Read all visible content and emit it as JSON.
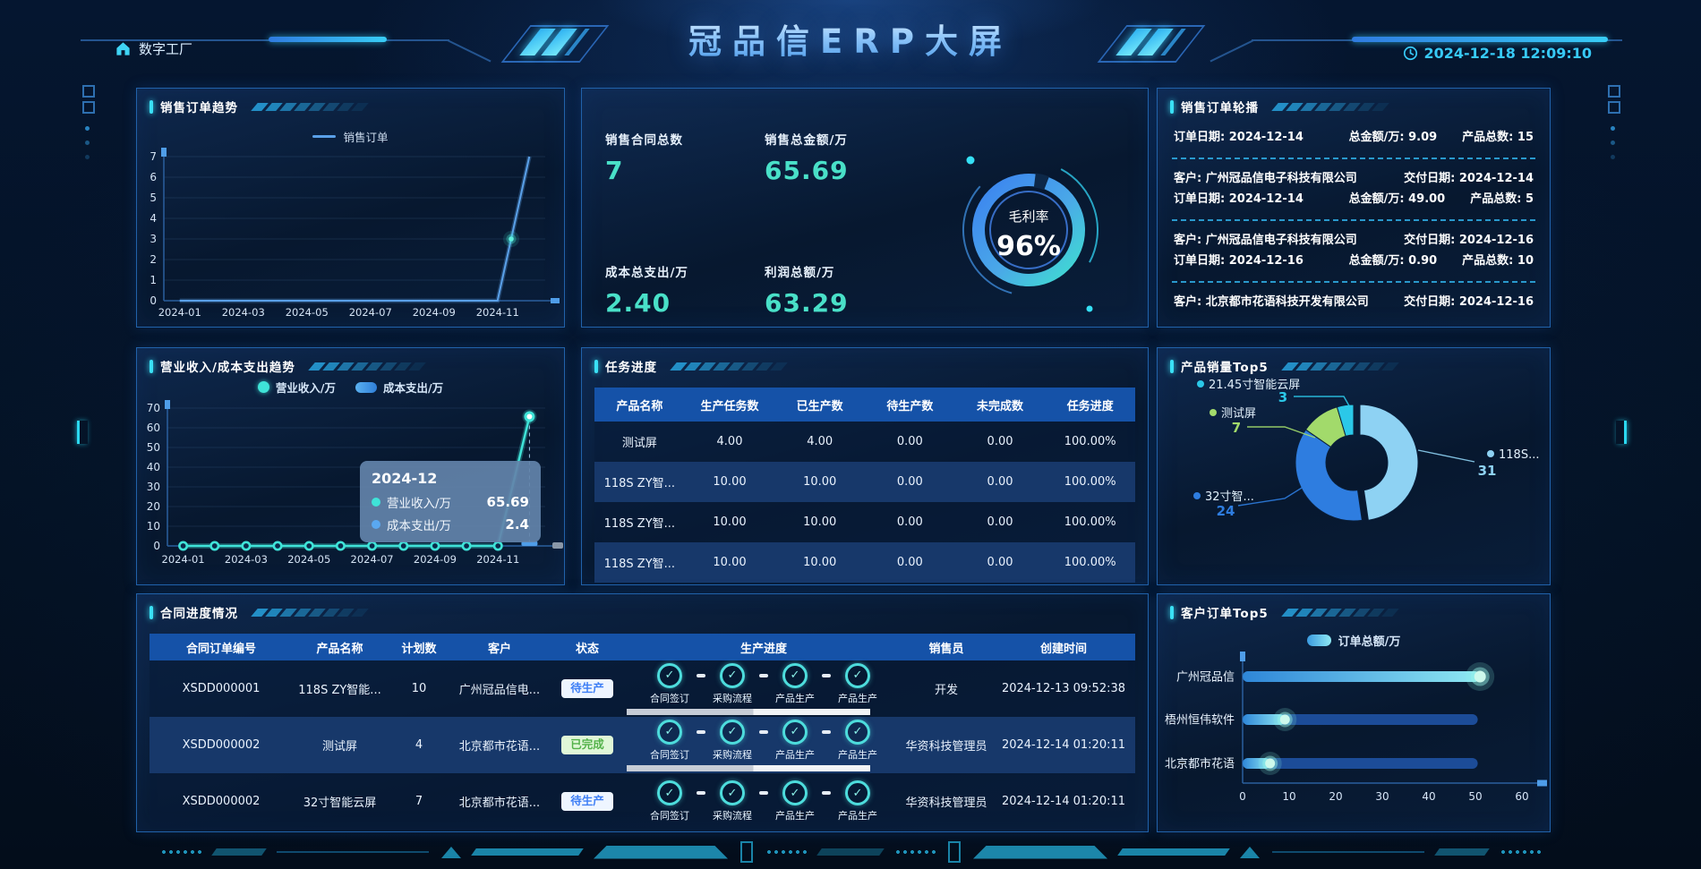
{
  "header": {
    "home_label": "数字工厂",
    "title": "冠品信ERP大屏",
    "timestamp": "2024-12-18 12:09:10"
  },
  "panels": {
    "sales_trend_title": "销售订单趋势",
    "order_carousel_title": "销售订单轮播",
    "income_cost_title": "营业收入/成本支出趋势",
    "task_progress_title": "任务进度",
    "product_top5_title": "产品销量Top5",
    "contract_title": "合同进度情况",
    "customer_top5_title": "客户订单Top5"
  },
  "kpis": {
    "items": [
      {
        "label": "销售合同总数",
        "value": "7"
      },
      {
        "label": "销售总金额/万",
        "value": "65.69"
      },
      {
        "label": "成本总支出/万",
        "value": "2.40"
      },
      {
        "label": "利润总额/万",
        "value": "63.29"
      }
    ],
    "gauge_label": "毛利率",
    "gauge_display": "96%",
    "gauge_percent": 96
  },
  "order_carousel": {
    "labels": {
      "customer": "客户:",
      "delivery": "交付日期:",
      "order": "订单日期:",
      "amount": "总金额/万:",
      "count": "产品总数:"
    },
    "items": [
      {
        "order_date": "2024-12-14",
        "amount": "9.09",
        "count": "15"
      },
      {
        "customer": "广州冠品信电子科技有限公司",
        "delivery_date": "2024-12-14",
        "order_date": "2024-12-14",
        "amount": "49.00",
        "count": "5"
      },
      {
        "customer": "广州冠品信电子科技有限公司",
        "delivery_date": "2024-12-16",
        "order_date": "2024-12-16",
        "amount": "0.90",
        "count": "10"
      },
      {
        "customer": "北京都市花语科技开发有限公司",
        "delivery_date": "2024-12-16"
      }
    ]
  },
  "task_progress": {
    "headers": [
      "产品名称",
      "生产任务数",
      "已生产数",
      "待生产数",
      "未完成数",
      "任务进度"
    ],
    "rows": [
      [
        "测试屏",
        "4.00",
        "4.00",
        "0.00",
        "0.00",
        "100.00%"
      ],
      [
        "118S ZY智...",
        "10.00",
        "10.00",
        "0.00",
        "0.00",
        "100.00%"
      ],
      [
        "118S ZY智...",
        "10.00",
        "10.00",
        "0.00",
        "0.00",
        "100.00%"
      ],
      [
        "118S ZY智...",
        "10.00",
        "10.00",
        "0.00",
        "0.00",
        "100.00%"
      ]
    ]
  },
  "contract_progress": {
    "headers": [
      "合同订单编号",
      "产品名称",
      "计划数",
      "客户",
      "状态",
      "生产进度",
      "销售员",
      "创建时间"
    ],
    "steps": [
      "合同签订",
      "采购流程",
      "产品生产",
      "产品生产"
    ],
    "rows": [
      {
        "order_no": "XSDD000001",
        "product": "118S ZY智能...",
        "plan": "10",
        "customer": "广州冠品信电...",
        "status": "待生产",
        "status_type": "pending",
        "salesperson": "开发",
        "created": "2024-12-13 09:52:38",
        "progress_bar": true
      },
      {
        "order_no": "XSDD000002",
        "product": "测试屏",
        "plan": "4",
        "customer": "北京都市花语...",
        "status": "已完成",
        "status_type": "done",
        "salesperson": "华资科技管理员",
        "created": "2024-12-14 01:20:11",
        "progress_bar": true
      },
      {
        "order_no": "XSDD000002",
        "product": "32寸智能云屏",
        "plan": "7",
        "customer": "北京都市花语...",
        "status": "待生产",
        "status_type": "pending",
        "salesperson": "华资科技管理员",
        "created": "2024-12-14 01:20:11",
        "progress_bar": false
      }
    ]
  },
  "chart_data": [
    {
      "id": "sales_trend",
      "type": "line",
      "title": "销售订单趋势",
      "x": [
        "2024-01",
        "2024-02",
        "2024-03",
        "2024-04",
        "2024-05",
        "2024-06",
        "2024-07",
        "2024-08",
        "2024-09",
        "2024-10",
        "2024-11",
        "2024-12"
      ],
      "series": [
        {
          "name": "销售订单",
          "values": [
            0,
            0,
            0,
            0,
            0,
            0,
            0,
            0,
            0,
            0,
            0,
            7
          ],
          "color": "#5aa0e8"
        }
      ],
      "ylim": [
        0,
        7
      ],
      "y_ticks": [
        0,
        1,
        2,
        3,
        4,
        5,
        6,
        7
      ],
      "x_tick_every": 2,
      "grid": true,
      "legend_position": "top"
    },
    {
      "id": "income_cost_trend",
      "type": "line+bar",
      "title": "营业收入/成本支出趋势",
      "x": [
        "2024-01",
        "2024-02",
        "2024-03",
        "2024-04",
        "2024-05",
        "2024-06",
        "2024-07",
        "2024-08",
        "2024-09",
        "2024-10",
        "2024-11",
        "2024-12"
      ],
      "series": [
        {
          "name": "营业收入/万",
          "type": "line",
          "values": [
            0,
            0,
            0,
            0,
            0,
            0,
            0,
            0,
            0,
            0,
            0,
            65.69
          ],
          "color": "#3fe3d8"
        },
        {
          "name": "成本支出/万",
          "type": "bar",
          "values": [
            0,
            0,
            0,
            0,
            0,
            0,
            0,
            0,
            0,
            0,
            0,
            2.4
          ],
          "color": "#4f9de8"
        }
      ],
      "ylim": [
        0,
        70
      ],
      "y_ticks": [
        0,
        10,
        20,
        30,
        40,
        50,
        60,
        70
      ],
      "x_tick_every": 2,
      "tooltip": {
        "title": "2024-12",
        "rows": [
          {
            "name": "营业收入/万",
            "value": "65.69",
            "color": "#3fe3d8"
          },
          {
            "name": "成本支出/万",
            "value": "2.4",
            "color": "#5aa8f0"
          }
        ]
      }
    },
    {
      "id": "product_sales_top5",
      "type": "pie",
      "title": "产品销量Top5",
      "donut": true,
      "total": 65,
      "slices": [
        {
          "label": "118S...",
          "value": 31,
          "color": "#8ed2f3"
        },
        {
          "label": "32寸智...",
          "value": 24,
          "color": "#2e7de0"
        },
        {
          "label": "测试屏",
          "value": 7,
          "color": "#a2da6b"
        },
        {
          "label": "21.45寸智能云屏",
          "value": 3,
          "color": "#2bc8e8"
        }
      ]
    },
    {
      "id": "customer_orders_top5",
      "type": "bar-horizontal",
      "title": "客户订单Top5",
      "legend_label": "订单总额/万",
      "categories": [
        "广州冠品信",
        "梧州恒伟软件",
        "北京都市花语"
      ],
      "values": [
        51,
        9.09,
        5.9
      ],
      "track_value": 50.5,
      "xlim": [
        0,
        60
      ],
      "x_ticks": [
        0,
        10,
        20,
        30,
        40,
        50,
        60
      ],
      "bar_gradient": [
        "#2e86d8",
        "#8fe8f2"
      ],
      "track_color": "#1c4c98"
    },
    {
      "id": "gross_margin_gauge",
      "type": "gauge",
      "label": "毛利率",
      "value": 96,
      "display": "96%"
    }
  ]
}
